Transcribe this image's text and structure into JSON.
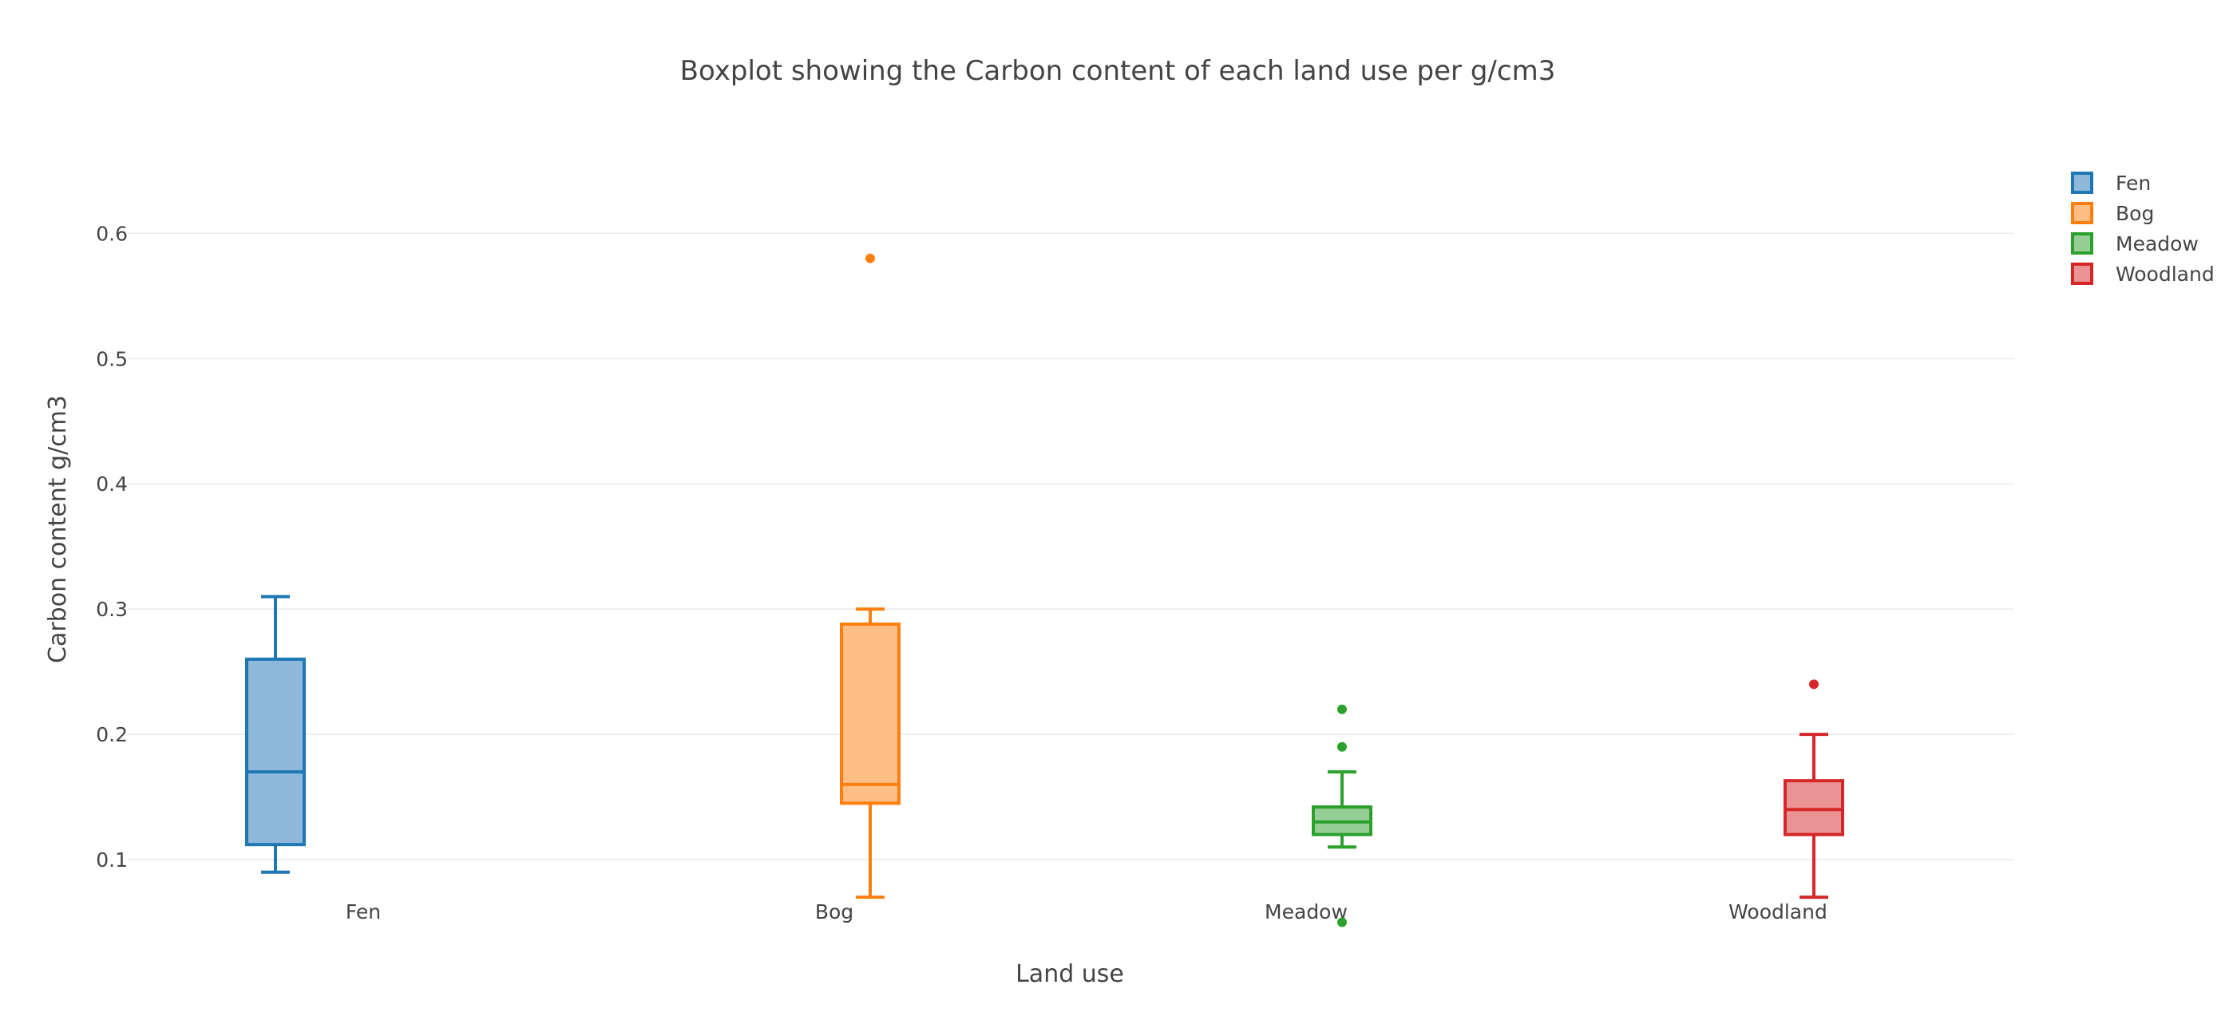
{
  "chart_data": {
    "type": "box",
    "title": "Boxplot showing the Carbon content of each land use per g/cm3",
    "xlabel": "Land use",
    "ylabel": "Carbon content g/cm3",
    "ylim": [
      0.02,
      0.64
    ],
    "yticks": [
      0.1,
      0.2,
      0.3,
      0.4,
      0.5,
      0.6
    ],
    "ytick_labels": [
      "0.1",
      "0.2",
      "0.3",
      "0.4",
      "0.5",
      "0.6"
    ],
    "categories": [
      "Fen",
      "Bog",
      "Meadow",
      "Woodland"
    ],
    "grid": true,
    "legend_position": "top-right",
    "series": [
      {
        "name": "Fen",
        "color": "#1f77b4",
        "fill": "#8fb9db",
        "min": 0.09,
        "q1": 0.112,
        "median": 0.17,
        "q3": 0.26,
        "max": 0.31,
        "outliers": []
      },
      {
        "name": "Bog",
        "color": "#ff7f0e",
        "fill": "#ffbe86",
        "min": 0.07,
        "q1": 0.145,
        "median": 0.16,
        "q3": 0.288,
        "max": 0.3,
        "outliers": [
          0.58
        ]
      },
      {
        "name": "Meadow",
        "color": "#2ca02c",
        "fill": "#95cf95",
        "min": 0.11,
        "q1": 0.12,
        "median": 0.13,
        "q3": 0.142,
        "max": 0.17,
        "outliers": [
          0.22,
          0.19,
          0.05
        ]
      },
      {
        "name": "Woodland",
        "color": "#d62728",
        "fill": "#eb9394",
        "min": 0.07,
        "q1": 0.12,
        "median": 0.14,
        "q3": 0.163,
        "max": 0.2,
        "outliers": [
          0.24
        ]
      }
    ]
  }
}
